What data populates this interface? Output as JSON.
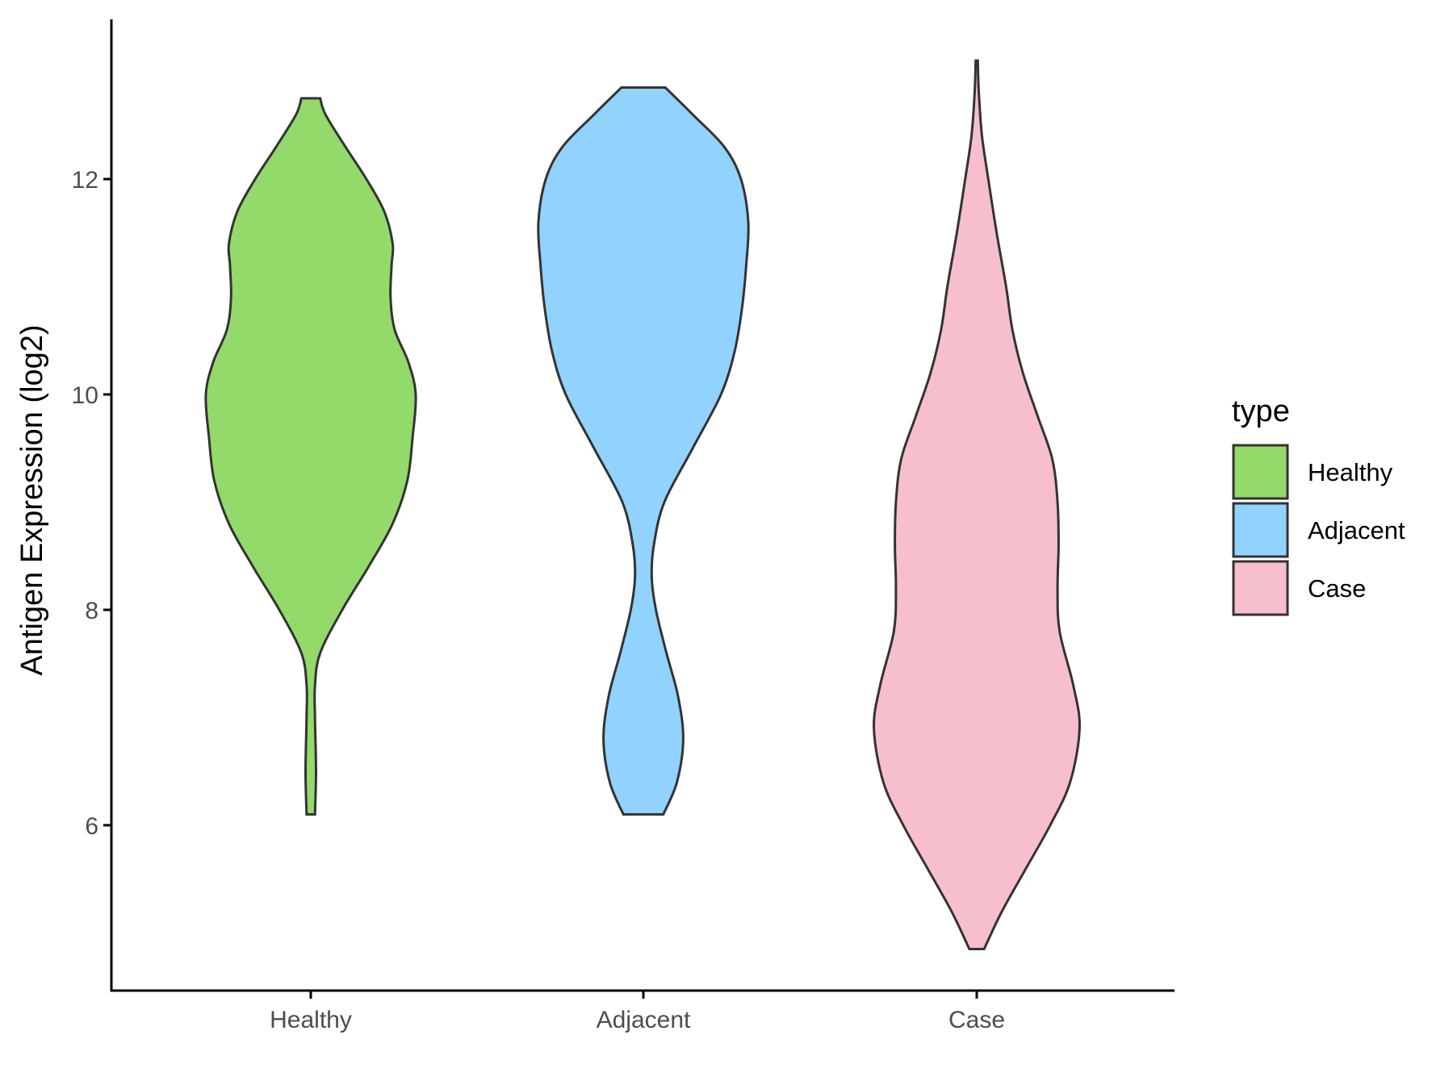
{
  "chart_data": {
    "type": "violin",
    "title": "",
    "xlabel": "",
    "ylabel": "Antigen Expression (log2)",
    "ylim": [
      4.5,
      13.5
    ],
    "yticks": [
      6,
      8,
      10,
      12
    ],
    "categories": [
      "Healthy",
      "Adjacent",
      "Case"
    ],
    "legend": {
      "title": "type",
      "position": "right",
      "entries": [
        {
          "label": "Healthy",
          "color": "#93DA6A"
        },
        {
          "label": "Adjacent",
          "color": "#92D2FF"
        },
        {
          "label": "Case",
          "color": "#F7BFCB"
        }
      ]
    },
    "grid": false,
    "series": [
      {
        "category": "Healthy",
        "color": "#93DA6A",
        "min": 6.1,
        "max": 12.75,
        "density_profile": [
          [
            6.1,
            0.04
          ],
          [
            6.5,
            0.05
          ],
          [
            7.0,
            0.04
          ],
          [
            7.3,
            0.04
          ],
          [
            7.6,
            0.09
          ],
          [
            8.0,
            0.3
          ],
          [
            8.4,
            0.55
          ],
          [
            8.8,
            0.78
          ],
          [
            9.2,
            0.92
          ],
          [
            9.6,
            0.97
          ],
          [
            10.0,
            1.0
          ],
          [
            10.3,
            0.93
          ],
          [
            10.6,
            0.8
          ],
          [
            10.9,
            0.76
          ],
          [
            11.2,
            0.77
          ],
          [
            11.4,
            0.78
          ],
          [
            11.7,
            0.7
          ],
          [
            12.0,
            0.53
          ],
          [
            12.3,
            0.33
          ],
          [
            12.6,
            0.14
          ],
          [
            12.75,
            0.09
          ]
        ]
      },
      {
        "category": "Adjacent",
        "color": "#92D2FF",
        "min": 6.1,
        "max": 12.85,
        "density_profile": [
          [
            6.1,
            0.19
          ],
          [
            6.4,
            0.32
          ],
          [
            6.8,
            0.38
          ],
          [
            7.2,
            0.33
          ],
          [
            7.6,
            0.22
          ],
          [
            8.0,
            0.12
          ],
          [
            8.3,
            0.08
          ],
          [
            8.6,
            0.1
          ],
          [
            9.0,
            0.2
          ],
          [
            9.5,
            0.47
          ],
          [
            10.0,
            0.74
          ],
          [
            10.4,
            0.87
          ],
          [
            10.8,
            0.94
          ],
          [
            11.2,
            0.98
          ],
          [
            11.6,
            1.0
          ],
          [
            12.0,
            0.93
          ],
          [
            12.3,
            0.77
          ],
          [
            12.6,
            0.47
          ],
          [
            12.85,
            0.21
          ]
        ]
      },
      {
        "category": "Case",
        "color": "#F7BFCB",
        "min": 4.85,
        "max": 13.1,
        "density_profile": [
          [
            4.85,
            0.07
          ],
          [
            5.2,
            0.24
          ],
          [
            5.6,
            0.47
          ],
          [
            6.0,
            0.7
          ],
          [
            6.4,
            0.89
          ],
          [
            6.9,
            0.98
          ],
          [
            7.3,
            0.92
          ],
          [
            7.8,
            0.79
          ],
          [
            8.2,
            0.77
          ],
          [
            8.6,
            0.78
          ],
          [
            9.0,
            0.77
          ],
          [
            9.4,
            0.72
          ],
          [
            9.8,
            0.58
          ],
          [
            10.2,
            0.44
          ],
          [
            10.6,
            0.34
          ],
          [
            11.0,
            0.28
          ],
          [
            11.5,
            0.19
          ],
          [
            12.0,
            0.11
          ],
          [
            12.4,
            0.05
          ],
          [
            12.8,
            0.02
          ],
          [
            13.1,
            0.01
          ]
        ]
      }
    ]
  }
}
